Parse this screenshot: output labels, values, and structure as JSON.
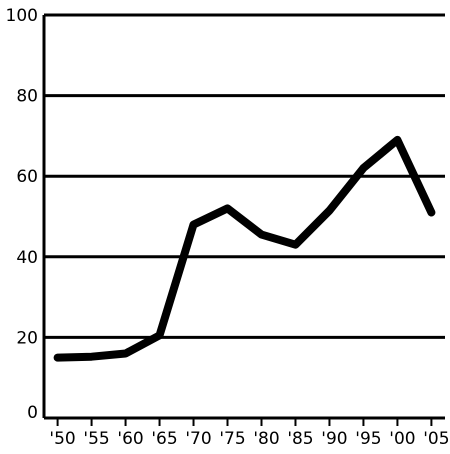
{
  "chart_data": {
    "type": "line",
    "title": "",
    "xlabel": "",
    "ylabel": "",
    "x": [
      1950,
      1955,
      1960,
      1965,
      1970,
      1975,
      1980,
      1985,
      1990,
      1995,
      2000,
      2005
    ],
    "x_tick_labels": [
      "'50",
      "'55",
      "'60",
      "'65",
      "'70",
      "'75",
      "'80",
      "'85",
      "'90",
      "'95",
      "'00",
      "'05"
    ],
    "y_ticks": [
      0,
      20,
      40,
      60,
      80,
      100
    ],
    "y_tick_labels": [
      "0",
      "20",
      "40",
      "60",
      "80",
      "100"
    ],
    "ylim": [
      0,
      100
    ],
    "xlim": [
      1948,
      2007
    ],
    "grid": true,
    "legend": "none",
    "series": [
      {
        "values": [
          15,
          15.2,
          16,
          20.5,
          48,
          52,
          45.5,
          43,
          51.5,
          62,
          69,
          51
        ],
        "color": "#000000"
      }
    ]
  }
}
